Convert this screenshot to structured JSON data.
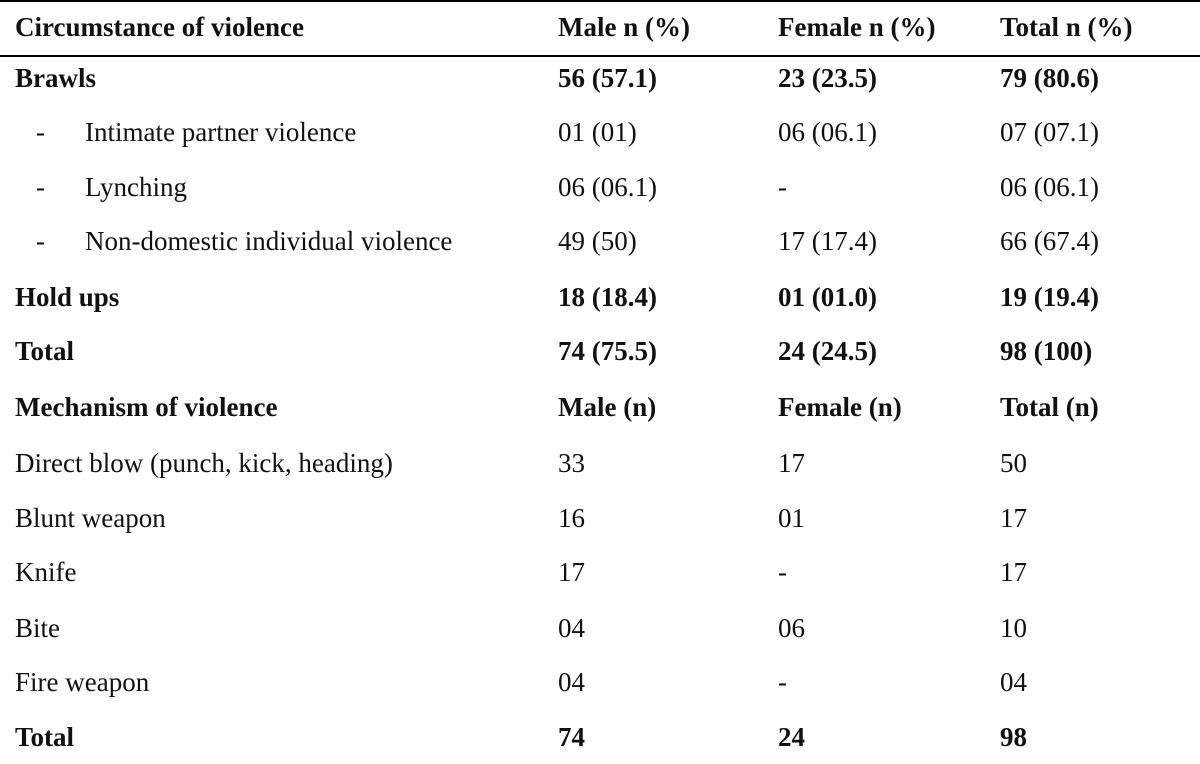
{
  "header": {
    "col0": "Circumstance of violence",
    "col1": "Male n (%)",
    "col2": "Female n (%)",
    "col3": "Total n (%)"
  },
  "rows": [
    {
      "label": "Brawls",
      "male": "56 (57.1)",
      "female": "23 (23.5)",
      "total": "79 (80.6)"
    },
    {
      "label": "Intimate partner violence",
      "male": "01 (01)",
      "female": "06 (06.1)",
      "total": "07 (07.1)"
    },
    {
      "label": "Lynching",
      "male": "06 (06.1)",
      "female": "-",
      "total": "06 (06.1)"
    },
    {
      "label": "Non-domestic individual violence",
      "male": "49 (50)",
      "female": "17 (17.4)",
      "total": "66 (67.4)"
    },
    {
      "label": "Hold ups",
      "male": "18 (18.4)",
      "female": "01 (01.0)",
      "total": "19 (19.4)"
    },
    {
      "label": "Total",
      "male": "74 (75.5)",
      "female": "24 (24.5)",
      "total": "98 (100)"
    },
    {
      "label": "Mechanism of violence",
      "male": "Male (n)",
      "female": "Female (n)",
      "total": "Total (n)"
    },
    {
      "label": "Direct blow (punch, kick, heading)",
      "male": "33",
      "female": "17",
      "total": "50"
    },
    {
      "label": "Blunt weapon",
      "male": "16",
      "female": "01",
      "total": "17"
    },
    {
      "label": "Knife",
      "male": "17",
      "female": "-",
      "total": "17"
    },
    {
      "label": "Bite",
      "male": "04",
      "female": "06",
      "total": "10"
    },
    {
      "label": "Fire weapon",
      "male": "04",
      "female": "-",
      "total": "04"
    },
    {
      "label": "Total",
      "male": "74",
      "female": "24",
      "total": "98"
    }
  ],
  "sub_item_marker": "-"
}
